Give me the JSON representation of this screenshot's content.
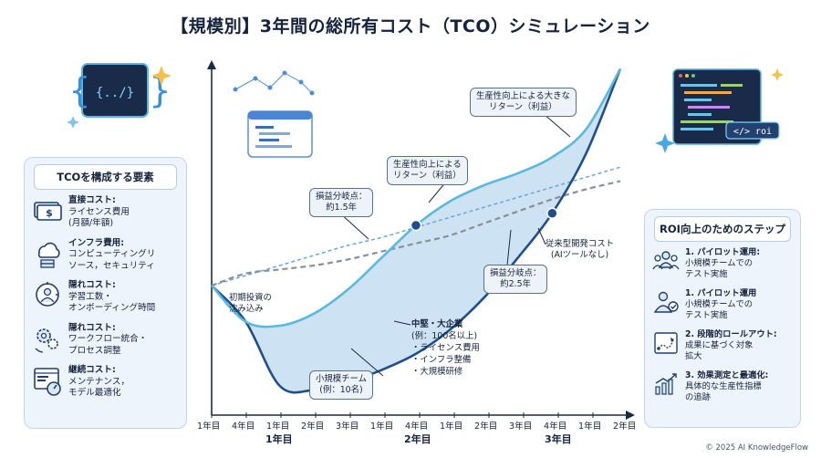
{
  "title": "【規模別】3年間の総所有コスト（TCO）シミュレーション",
  "left_panel": {
    "heading": "TCOを構成する要素",
    "items": [
      {
        "icon": "money-icon",
        "l1": "直接コスト:",
        "l2": "ライセンス費用",
        "l3": "(月額/年額)"
      },
      {
        "icon": "cloud-server-icon",
        "l1": "インフラ費用:",
        "l2": "コンピューティングリ",
        "l3": "ソース，セキュリティ"
      },
      {
        "icon": "clock-person-icon",
        "l1": "隠れコスト:",
        "l2": "学習工数・",
        "l3": "オンボーディング時間"
      },
      {
        "icon": "gears-icon",
        "l1": "隠れコスト:",
        "l2": "ワークフロー統合・",
        "l3": "プロセス調整"
      },
      {
        "icon": "gauge-window-icon",
        "l1": "継続コスト:",
        "l2": "メンテナンス，",
        "l3": "モデル最適化"
      }
    ]
  },
  "right_panel": {
    "heading": "ROI向上のためのステップ",
    "items": [
      {
        "icon": "team-icon",
        "l1": "1. パイロット運用:",
        "l2": "小規模チームでの",
        "l3": "テスト実施"
      },
      {
        "icon": "person-check-icon",
        "l1": "1. パイロット運用",
        "l2": "小規模チームでの",
        "l3": "テスト実施"
      },
      {
        "icon": "roadmap-icon",
        "l1": "2. 段階的ロールアウト:",
        "l2": "成果に基づく対象",
        "l3": "拡大"
      },
      {
        "icon": "bar-chart-up-icon",
        "l1": "3. 効果測定と最適化:",
        "l2": "具体的な生産性指標",
        "l3": "の追跡"
      }
    ]
  },
  "x_axis": {
    "ticks": [
      "1年目",
      "4年目",
      "1年目",
      "2年目",
      "3年目",
      "1年目",
      "4年目",
      "1年目",
      "2年目",
      "3年目",
      "4年目",
      "1年目",
      "2年目"
    ],
    "groups": [
      "1年目",
      "2年目",
      "3年目"
    ]
  },
  "callouts": {
    "initial": "初期投資の\n沈み込み",
    "small": "小規模チーム\n(例：10名)",
    "mid_l1": "中堅・大企業",
    "mid_l2": "(例：100名以上)",
    "mid_l3": "・ライセンス費用",
    "mid_l4": "・インフラ整備",
    "mid_l5": "・大規模研修",
    "bep1": "損益分岐点：\n約1.5年",
    "bep2": "損益分岐点：\n約2.5年",
    "return1": "生産性向上による\nリターン（利益）",
    "return2": "生産性向上による大きな\nリターン（利益）",
    "traditional": "従来型開発コスト\n(AIツールなし)"
  },
  "icons": {
    "code_icon_text": "{../}",
    "roi_tag": "</> roi"
  },
  "colors": {
    "small_line": "#5bb8de",
    "large_line": "#1f4e8c",
    "traditional": "#8a8f98",
    "dashed_blue": "#6aa7d9",
    "fill": "#bcd8ef"
  },
  "chart_data": {
    "type": "line",
    "x": [
      0,
      3,
      6,
      9,
      12,
      15,
      18,
      21,
      24,
      27,
      30,
      33,
      36
    ],
    "series": [
      {
        "values": [
          0,
          -0.9,
          -1.0,
          -0.7,
          -0.1,
          0.7,
          1.5,
          2.1,
          2.5,
          2.8,
          3.2,
          3.9,
          5.4
        ]
      },
      {
        "values": [
          0,
          -0.9,
          -2.5,
          -2.6,
          -2.4,
          -2.1,
          -1.7,
          -1.1,
          -0.3,
          0.7,
          1.8,
          3.3,
          5.4
        ]
      },
      {
        "values": [
          0,
          0.3,
          0.4,
          0.5,
          0.65,
          0.85,
          1.05,
          1.25,
          1.55,
          1.85,
          2.15,
          2.4,
          2.6
        ]
      },
      {
        "values": [
          0,
          0.25,
          0.5,
          0.75,
          1.0,
          1.2,
          1.45,
          1.7,
          1.95,
          2.2,
          2.45,
          2.7,
          2.95
        ]
      }
    ],
    "break_even_points": [
      {
        "x": 18,
        "label": "約1.5年"
      },
      {
        "x": 30,
        "label": "約2.5年"
      }
    ]
  }
}
